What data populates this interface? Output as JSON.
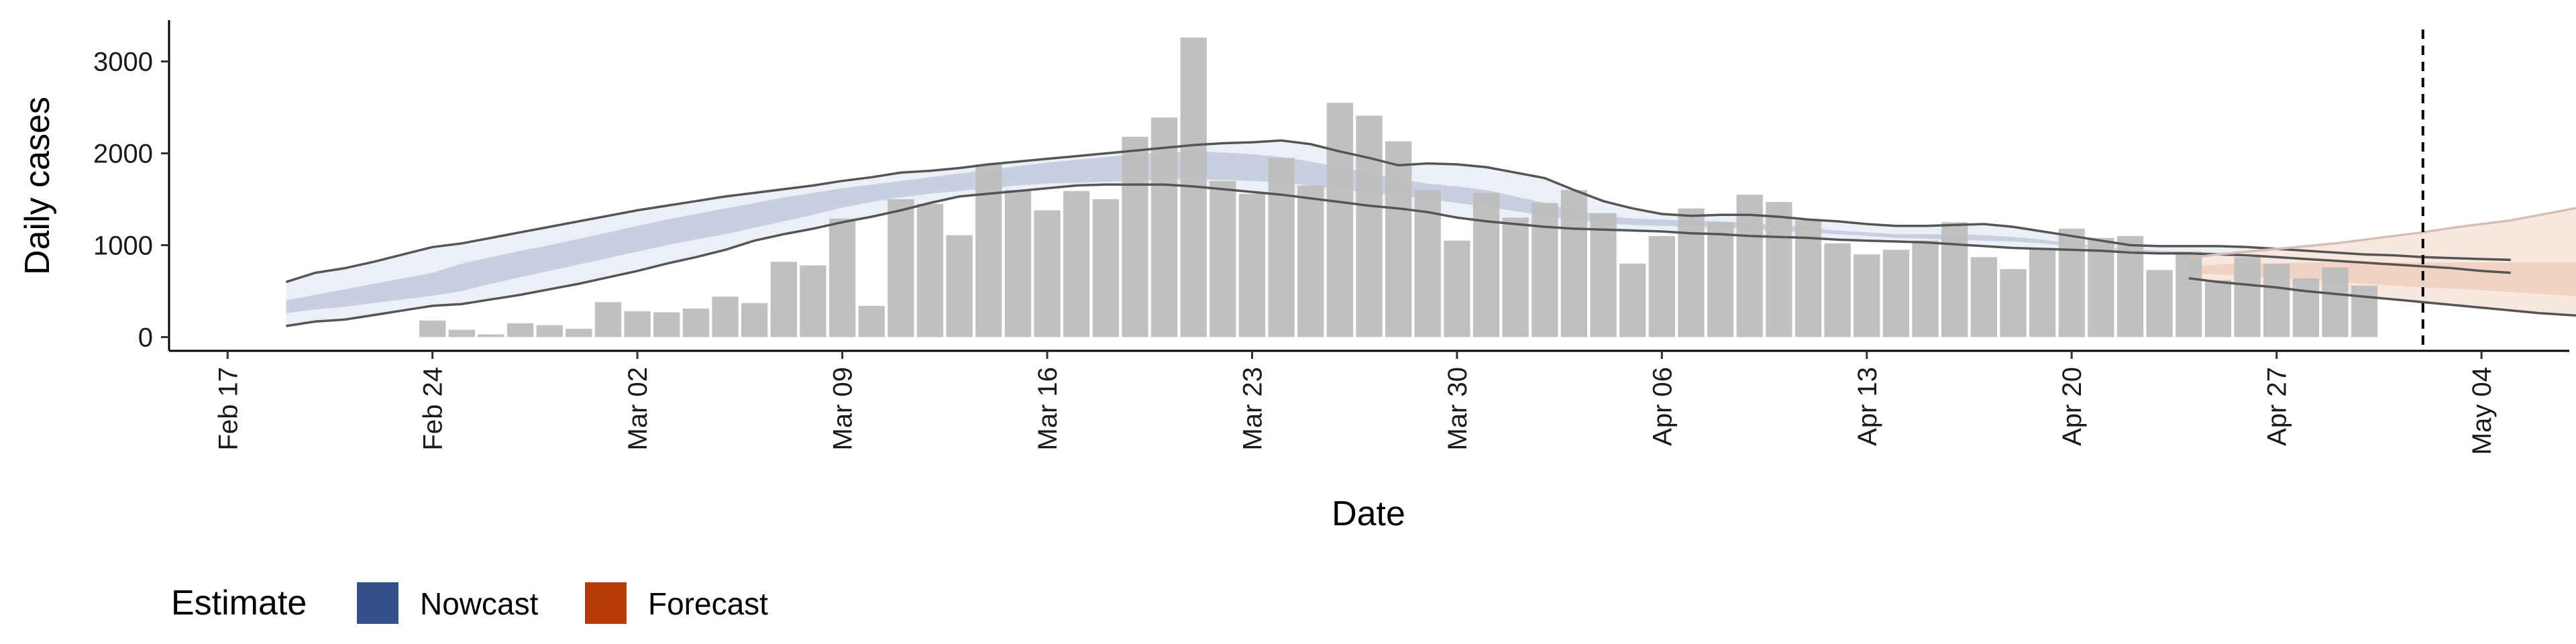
{
  "chart_data": {
    "type": "bar",
    "xlabel": "Date",
    "ylabel": "Daily cases",
    "ylim": [
      -150,
      3450
    ],
    "yticks": [
      0,
      1000,
      2000,
      3000
    ],
    "y_tick_labels": [
      "0",
      "1000",
      "2000",
      "3000"
    ],
    "xlim": [
      "2020-02-15",
      "2020-05-07"
    ],
    "x_tick_dates": [
      "2020-02-17",
      "2020-02-24",
      "2020-03-02",
      "2020-03-09",
      "2020-03-16",
      "2020-03-23",
      "2020-03-30",
      "2020-04-06",
      "2020-04-13",
      "2020-04-20",
      "2020-04-27",
      "2020-05-04"
    ],
    "x_tick_labels": [
      "Feb 17",
      "Feb 24",
      "Mar 02",
      "Mar 09",
      "Mar 16",
      "Mar 23",
      "Mar 30",
      "Apr 06",
      "Apr 13",
      "Apr 20",
      "Apr 27",
      "May 04"
    ],
    "grid": false,
    "legend": {
      "title": "Estimate",
      "position": "bottom-left",
      "items": [
        {
          "label": "Nowcast",
          "color": "#34508a"
        },
        {
          "label": "Forecast",
          "color": "#b83c06"
        }
      ]
    },
    "colors": {
      "bars": "#bdbdbd",
      "nowcast_outer": "#eceff5",
      "nowcast_inner": "#c8cfe0",
      "forecast_outer": "#f8e7df",
      "forecast_inner": "#f1d2c3",
      "band_edge": "#555555",
      "forecast_edge": "#d4bfb6",
      "vline": "#000000"
    },
    "cases": {
      "start_date": "2020-02-24",
      "values": [
        180,
        80,
        30,
        150,
        130,
        90,
        380,
        280,
        270,
        310,
        440,
        370,
        820,
        780,
        1290,
        340,
        1500,
        1450,
        1110,
        1880,
        1600,
        1380,
        1590,
        1500,
        2180,
        2390,
        3260,
        1700,
        1560,
        1950,
        1650,
        2550,
        2410,
        2130,
        1600,
        1050,
        1570,
        1300,
        1460,
        1600,
        1350,
        800,
        1100,
        1400,
        1250,
        1550,
        1470,
        1270,
        1020,
        900,
        950,
        1050,
        1250,
        870,
        740,
        970,
        1180,
        1080,
        1100,
        730,
        930,
        620,
        870,
        800,
        640,
        760,
        560
      ]
    },
    "nowcast": {
      "start_date": "2020-02-19",
      "upper90": [
        600,
        700,
        750,
        820,
        900,
        980,
        1020,
        1080,
        1140,
        1200,
        1260,
        1320,
        1380,
        1430,
        1480,
        1530,
        1570,
        1610,
        1650,
        1700,
        1740,
        1790,
        1810,
        1840,
        1880,
        1910,
        1940,
        1970,
        2000,
        2030,
        2060,
        2090,
        2110,
        2120,
        2140,
        2100,
        2020,
        1950,
        1870,
        1890,
        1880,
        1850,
        1790,
        1730,
        1600,
        1480,
        1400,
        1340,
        1320,
        1330,
        1330,
        1310,
        1280,
        1260,
        1230,
        1210,
        1210,
        1220,
        1230,
        1200,
        1150,
        1100,
        1050,
        1000,
        990,
        990,
        990,
        980,
        960,
        940,
        920,
        900,
        890,
        870,
        860,
        850,
        840
      ],
      "upper50": [
        400,
        460,
        520,
        580,
        640,
        700,
        800,
        870,
        940,
        1000,
        1070,
        1140,
        1210,
        1280,
        1340,
        1400,
        1460,
        1520,
        1570,
        1620,
        1660,
        1700,
        1740,
        1780,
        1820,
        1860,
        1900,
        1930,
        1960,
        1990,
        2010,
        2020,
        2010,
        1990,
        1960,
        1910,
        1850,
        1790,
        1720,
        1670,
        1640,
        1600,
        1530,
        1460,
        1380,
        1320,
        1290,
        1280,
        1270,
        1260,
        1240,
        1220,
        1190,
        1160,
        1140,
        1120,
        1120,
        1120,
        1110,
        1090,
        1060,
        1020,
        980,
        960,
        940,
        930,
        920,
        910,
        900,
        880,
        860,
        850,
        840,
        830,
        820,
        810,
        800
      ],
      "lower50": [
        260,
        300,
        330,
        370,
        410,
        450,
        500,
        580,
        650,
        720,
        790,
        860,
        930,
        1000,
        1060,
        1120,
        1190,
        1260,
        1330,
        1410,
        1470,
        1520,
        1560,
        1590,
        1620,
        1650,
        1670,
        1680,
        1690,
        1700,
        1710,
        1720,
        1710,
        1700,
        1680,
        1650,
        1610,
        1570,
        1540,
        1500,
        1460,
        1420,
        1370,
        1320,
        1280,
        1240,
        1220,
        1210,
        1200,
        1190,
        1180,
        1160,
        1140,
        1120,
        1100,
        1080,
        1070,
        1060,
        1050,
        1040,
        1020,
        990,
        960,
        940,
        920,
        900,
        890,
        880,
        870,
        850,
        830,
        810,
        790,
        770,
        760,
        740,
        720
      ],
      "lower90": [
        120,
        170,
        190,
        240,
        290,
        340,
        360,
        410,
        460,
        520,
        580,
        650,
        720,
        800,
        870,
        950,
        1050,
        1120,
        1180,
        1250,
        1310,
        1380,
        1460,
        1530,
        1560,
        1590,
        1620,
        1650,
        1660,
        1660,
        1660,
        1640,
        1610,
        1580,
        1550,
        1510,
        1470,
        1430,
        1400,
        1360,
        1300,
        1260,
        1230,
        1200,
        1180,
        1170,
        1160,
        1150,
        1130,
        1120,
        1100,
        1090,
        1080,
        1060,
        1050,
        1040,
        1030,
        1010,
        990,
        970,
        960,
        950,
        940,
        920,
        910,
        910,
        900,
        890,
        870,
        850,
        830,
        810,
        790,
        770,
        750,
        720,
        700
      ]
    },
    "forecast": {
      "start_date": "2020-04-24",
      "upper90": [
        860,
        900,
        930,
        960,
        990,
        1020,
        1060,
        1100,
        1140,
        1190,
        1230,
        1270,
        1330,
        1390,
        1450,
        1520,
        1590,
        1710
      ],
      "upper50": [
        770,
        790,
        800,
        800,
        810,
        810,
        810,
        810,
        810,
        810,
        810,
        810,
        810,
        810,
        810,
        810,
        810,
        810
      ],
      "lower50": [
        700,
        680,
        660,
        640,
        620,
        600,
        580,
        560,
        540,
        530,
        510,
        490,
        470,
        450,
        440,
        420,
        410,
        400
      ],
      "lower90": [
        640,
        600,
        570,
        540,
        500,
        470,
        440,
        410,
        380,
        350,
        320,
        290,
        260,
        240,
        220,
        190,
        150,
        110
      ]
    },
    "vline_date": "2020-05-02"
  }
}
